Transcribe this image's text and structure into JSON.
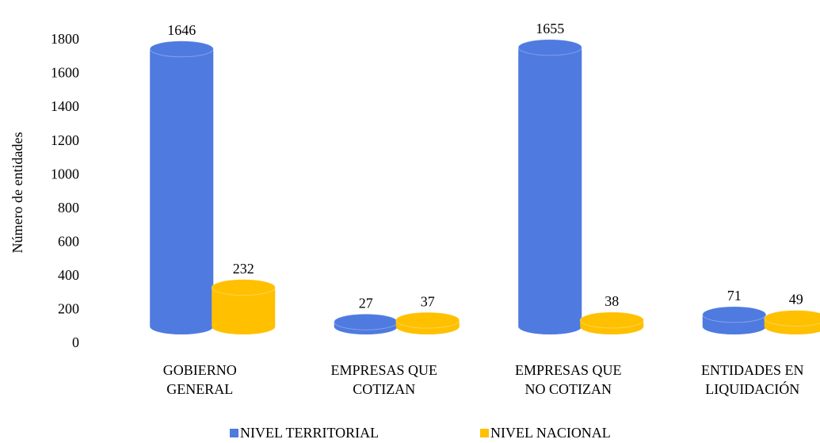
{
  "chart_data": {
    "type": "bar3d",
    "y_label": "Número de entidades",
    "categories": [
      "GOBIERNO GENERAL",
      "EMPRESAS QUE COTIZAN",
      "EMPRESAS QUE NO COTIZAN",
      "ENTIDADES EN LIQUIDACIÓN"
    ],
    "series": [
      {
        "name": "NIVEL TERRITORIAL",
        "color": "#4f7ae0",
        "values": [
          1646,
          27,
          1655,
          71
        ]
      },
      {
        "name": "NIVEL NACIONAL",
        "color": "#ffc000",
        "values": [
          232,
          37,
          38,
          49
        ]
      }
    ],
    "ylim": [
      0,
      1800
    ],
    "yticks": [
      0,
      200,
      400,
      600,
      800,
      1000,
      1200,
      1400,
      1600,
      1800
    ],
    "legend": "bottom"
  }
}
